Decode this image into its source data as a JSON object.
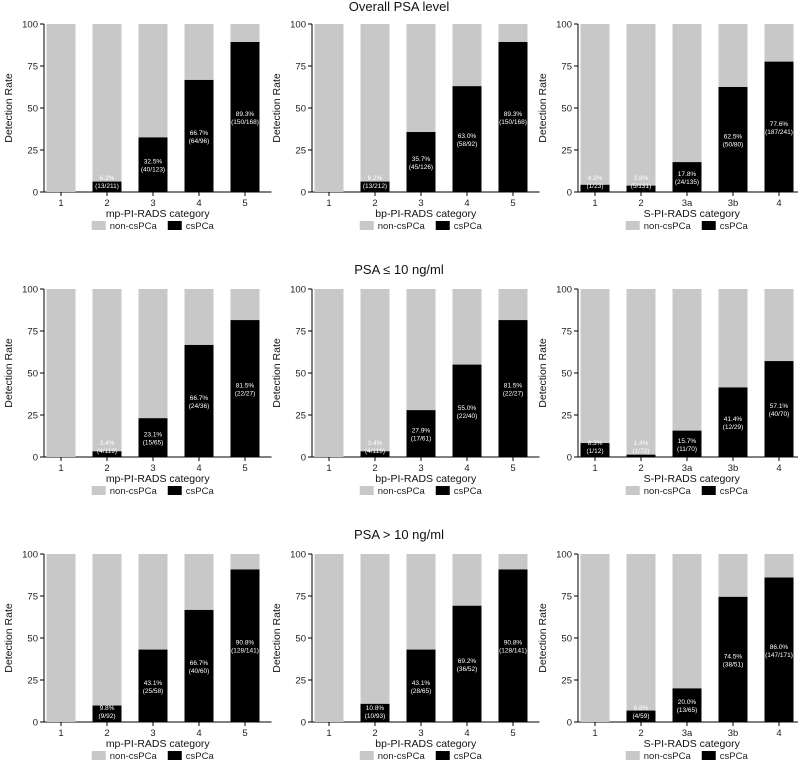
{
  "figure": {
    "section_titles": [
      "Overall PSA level",
      "PSA ≤ 10 ng/ml",
      "PSA > 10 ng/ml"
    ],
    "colors": {
      "non_cspca": "#c8c8c8",
      "cspca": "#000000",
      "axis": "#000000"
    }
  },
  "chart_data": [
    {
      "type": "bar",
      "stacked": true,
      "section": "Overall PSA level",
      "categories": [
        "1",
        "2",
        "3",
        "4",
        "5"
      ],
      "series": [
        {
          "name": "csPCa",
          "values": [
            0,
            6.2,
            32.5,
            66.7,
            89.3
          ]
        },
        {
          "name": "non-csPCa",
          "values": [
            100,
            93.8,
            67.5,
            33.3,
            10.7
          ]
        }
      ],
      "labels": [
        [
          "",
          ""
        ],
        [
          "6.2%",
          "(13/211)"
        ],
        [
          "32.5%",
          "(40/123)"
        ],
        [
          "66.7%",
          "(64/96)"
        ],
        [
          "89.3%",
          "(150/168)"
        ]
      ],
      "xlabel": "mp-PI-RADS category",
      "ylabel": "Detection Rate",
      "ylim": [
        0,
        100
      ],
      "yticks": [
        0,
        25,
        50,
        75,
        100
      ],
      "legend": [
        "non-csPCa",
        "csPCa"
      ]
    },
    {
      "type": "bar",
      "stacked": true,
      "section": "Overall PSA level",
      "categories": [
        "1",
        "2",
        "3",
        "4",
        "5"
      ],
      "series": [
        {
          "name": "csPCa",
          "values": [
            0,
            6.2,
            35.7,
            63.0,
            89.3
          ]
        },
        {
          "name": "non-csPCa",
          "values": [
            100,
            93.8,
            64.3,
            37.0,
            10.7
          ]
        }
      ],
      "labels": [
        [
          "",
          ""
        ],
        [
          "6.2%",
          "(13/212)"
        ],
        [
          "35.7%",
          "(45/126)"
        ],
        [
          "63.0%",
          "(58/92)"
        ],
        [
          "89.3%",
          "(150/168)"
        ]
      ],
      "xlabel": "bp-PI-RADS category",
      "ylabel": "Detection Rate",
      "ylim": [
        0,
        100
      ],
      "yticks": [
        0,
        25,
        50,
        75,
        100
      ],
      "legend": [
        "non-csPCa",
        "csPCa"
      ]
    },
    {
      "type": "bar",
      "stacked": true,
      "section": "Overall PSA level",
      "categories": [
        "1",
        "2",
        "3a",
        "3b",
        "4"
      ],
      "series": [
        {
          "name": "csPCa",
          "values": [
            4.3,
            3.8,
            17.8,
            62.5,
            77.6
          ]
        },
        {
          "name": "non-csPCa",
          "values": [
            95.7,
            96.2,
            82.2,
            37.5,
            22.4
          ]
        }
      ],
      "labels": [
        [
          "4.3%",
          "(1/23)"
        ],
        [
          "3.8%",
          "(5/131)"
        ],
        [
          "17.8%",
          "(24/135)"
        ],
        [
          "62.5%",
          "(50/80)"
        ],
        [
          "77.6%",
          "(187/241)"
        ]
      ],
      "xlabel": "S-PI-RADS category",
      "ylabel": "Detection Rate",
      "ylim": [
        0,
        100
      ],
      "yticks": [
        0,
        25,
        50,
        75,
        100
      ],
      "legend": [
        "non-csPCa",
        "csPCa"
      ]
    },
    {
      "type": "bar",
      "stacked": true,
      "section": "PSA ≤ 10 ng/ml",
      "categories": [
        "1",
        "2",
        "3",
        "4",
        "5"
      ],
      "series": [
        {
          "name": "csPCa",
          "values": [
            0,
            3.4,
            23.1,
            66.7,
            81.5
          ]
        },
        {
          "name": "non-csPCa",
          "values": [
            100,
            96.6,
            76.9,
            33.3,
            18.5
          ]
        }
      ],
      "labels": [
        [
          "",
          ""
        ],
        [
          "3.4%",
          "(4/119)"
        ],
        [
          "23.1%",
          "(15/65)"
        ],
        [
          "66.7%",
          "(24/36)"
        ],
        [
          "81.5%",
          "(22/27)"
        ]
      ],
      "xlabel": "mp-PI-RADS category",
      "ylabel": "Detection Rate",
      "ylim": [
        0,
        100
      ],
      "yticks": [
        0,
        25,
        50,
        75,
        100
      ],
      "legend": [
        "non-csPCa",
        "csPCa"
      ]
    },
    {
      "type": "bar",
      "stacked": true,
      "section": "PSA ≤ 10 ng/ml",
      "categories": [
        "1",
        "2",
        "3",
        "4",
        "5"
      ],
      "series": [
        {
          "name": "csPCa",
          "values": [
            0,
            3.4,
            27.9,
            55.0,
            81.5
          ]
        },
        {
          "name": "non-csPCa",
          "values": [
            100,
            96.6,
            72.1,
            45.0,
            18.5
          ]
        }
      ],
      "labels": [
        [
          "",
          ""
        ],
        [
          "3.4%",
          "(4/119)"
        ],
        [
          "27.9%",
          "(17/61)"
        ],
        [
          "55.0%",
          "(22/40)"
        ],
        [
          "81.5%",
          "(22/27)"
        ]
      ],
      "xlabel": "bp-PI-RADS category",
      "ylabel": "Detection Rate",
      "ylim": [
        0,
        100
      ],
      "yticks": [
        0,
        25,
        50,
        75,
        100
      ],
      "legend": [
        "non-csPCa",
        "csPCa"
      ]
    },
    {
      "type": "bar",
      "stacked": true,
      "section": "PSA ≤ 10 ng/ml",
      "categories": [
        "1",
        "2",
        "3a",
        "3b",
        "4"
      ],
      "series": [
        {
          "name": "csPCa",
          "values": [
            8.3,
            1.4,
            15.7,
            41.4,
            57.1
          ]
        },
        {
          "name": "non-csPCa",
          "values": [
            91.7,
            98.6,
            84.3,
            58.6,
            42.9
          ]
        }
      ],
      "labels": [
        [
          "8.3%",
          "(1/12)"
        ],
        [
          "1.4%",
          "(1/72)"
        ],
        [
          "15.7%",
          "(11/70)"
        ],
        [
          "41.4%",
          "(12/29)"
        ],
        [
          "57.1%",
          "(40/70)"
        ]
      ],
      "xlabel": "S-PI-RADS category",
      "ylabel": "Detection Rate",
      "ylim": [
        0,
        100
      ],
      "yticks": [
        0,
        25,
        50,
        75,
        100
      ],
      "legend": [
        "non-csPCa",
        "csPCa"
      ]
    },
    {
      "type": "bar",
      "stacked": true,
      "section": "PSA > 10 ng/ml",
      "categories": [
        "1",
        "2",
        "3",
        "4",
        "5"
      ],
      "series": [
        {
          "name": "csPCa",
          "values": [
            0,
            9.8,
            43.1,
            66.7,
            90.8
          ]
        },
        {
          "name": "non-csPCa",
          "values": [
            100,
            90.2,
            56.9,
            33.3,
            9.2
          ]
        }
      ],
      "labels": [
        [
          "",
          ""
        ],
        [
          "9.8%",
          "(9/92)"
        ],
        [
          "43.1%",
          "(25/58)"
        ],
        [
          "66.7%",
          "(40/60)"
        ],
        [
          "90.8%",
          "(128/141)"
        ]
      ],
      "xlabel": "mp-PI-RADS category",
      "ylabel": "Detection Rate",
      "ylim": [
        0,
        100
      ],
      "yticks": [
        0,
        25,
        50,
        75,
        100
      ],
      "legend": [
        "non-csPCa",
        "csPCa"
      ]
    },
    {
      "type": "bar",
      "stacked": true,
      "section": "PSA > 10 ng/ml",
      "categories": [
        "1",
        "2",
        "3",
        "4",
        "5"
      ],
      "series": [
        {
          "name": "csPCa",
          "values": [
            0,
            10.8,
            43.1,
            69.2,
            90.8
          ]
        },
        {
          "name": "non-csPCa",
          "values": [
            100,
            89.2,
            56.9,
            30.8,
            9.2
          ]
        }
      ],
      "labels": [
        [
          "",
          ""
        ],
        [
          "10.8%",
          "(10/93)"
        ],
        [
          "43.1%",
          "(28/65)"
        ],
        [
          "69.2%",
          "(36/52)"
        ],
        [
          "90.8%",
          "(128/141)"
        ]
      ],
      "xlabel": "bp-PI-RADS category",
      "ylabel": "Detection Rate",
      "ylim": [
        0,
        100
      ],
      "yticks": [
        0,
        25,
        50,
        75,
        100
      ],
      "legend": [
        "non-csPCa",
        "csPCa"
      ]
    },
    {
      "type": "bar",
      "stacked": true,
      "section": "PSA > 10 ng/ml",
      "categories": [
        "1",
        "2",
        "3a",
        "3b",
        "4"
      ],
      "series": [
        {
          "name": "csPCa",
          "values": [
            0,
            6.8,
            20.0,
            74.5,
            86.0
          ]
        },
        {
          "name": "non-csPCa",
          "values": [
            100,
            93.2,
            80.0,
            25.5,
            14.0
          ]
        }
      ],
      "labels": [
        [
          "",
          ""
        ],
        [
          "6.8%",
          "(4/59)"
        ],
        [
          "20.0%",
          "(13/65)"
        ],
        [
          "74.5%",
          "(38/51)"
        ],
        [
          "86.0%",
          "(147/171)"
        ]
      ],
      "xlabel": "S-PI-RADS category",
      "ylabel": "Detection Rate",
      "ylim": [
        0,
        100
      ],
      "yticks": [
        0,
        25,
        50,
        75,
        100
      ],
      "legend": [
        "non-csPCa",
        "csPCa"
      ]
    }
  ]
}
